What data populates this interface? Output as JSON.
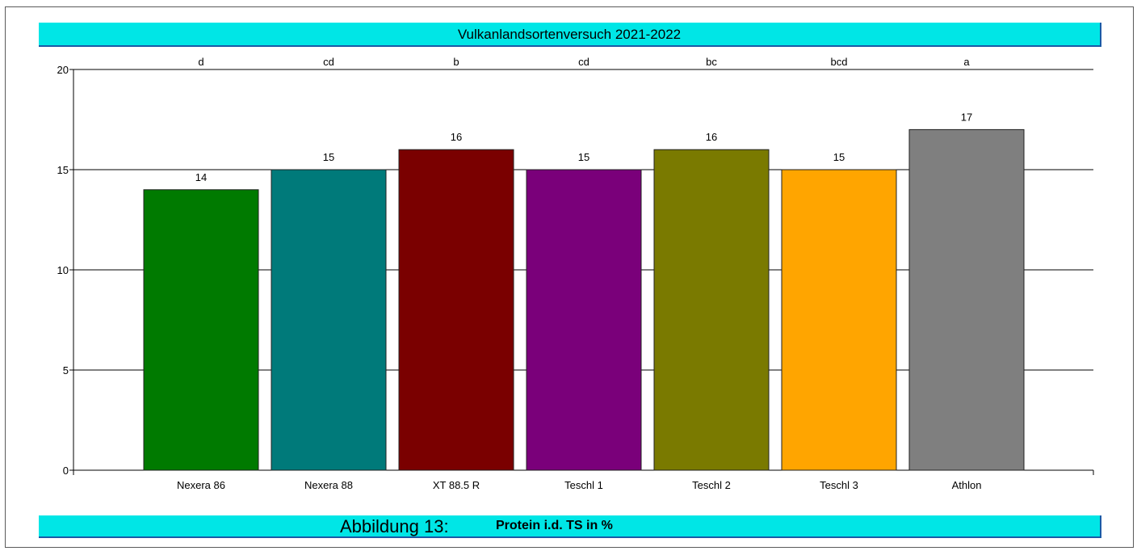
{
  "title": "Vulkanlandsortenversuch 2021-2022",
  "caption": {
    "label": "Abbildung 13:",
    "description": "Protein i.d. TS in %"
  },
  "chart_data": {
    "type": "bar",
    "title": "Vulkanlandsortenversuch 2021-2022",
    "xlabel": "",
    "ylabel": "",
    "ylim": [
      0,
      20
    ],
    "yticks": [
      0,
      5,
      10,
      15,
      20
    ],
    "grid": true,
    "categories": [
      "Nexera 86",
      "Nexera 88",
      "XT 88.5 R",
      "Teschl 1",
      "Teschl 2",
      "Teschl 3",
      "Athlon"
    ],
    "values": [
      14,
      15,
      16,
      15,
      16,
      15,
      17
    ],
    "value_labels": [
      "14",
      "15",
      "16",
      "15",
      "16",
      "15",
      "17"
    ],
    "significance_letters": [
      "d",
      "cd",
      "b",
      "cd",
      "bc",
      "bcd",
      "a"
    ],
    "colors": [
      "#007a00",
      "#007a7a",
      "#7a0000",
      "#7a007a",
      "#7a7a00",
      "#ffa500",
      "#7f7f7f"
    ]
  }
}
